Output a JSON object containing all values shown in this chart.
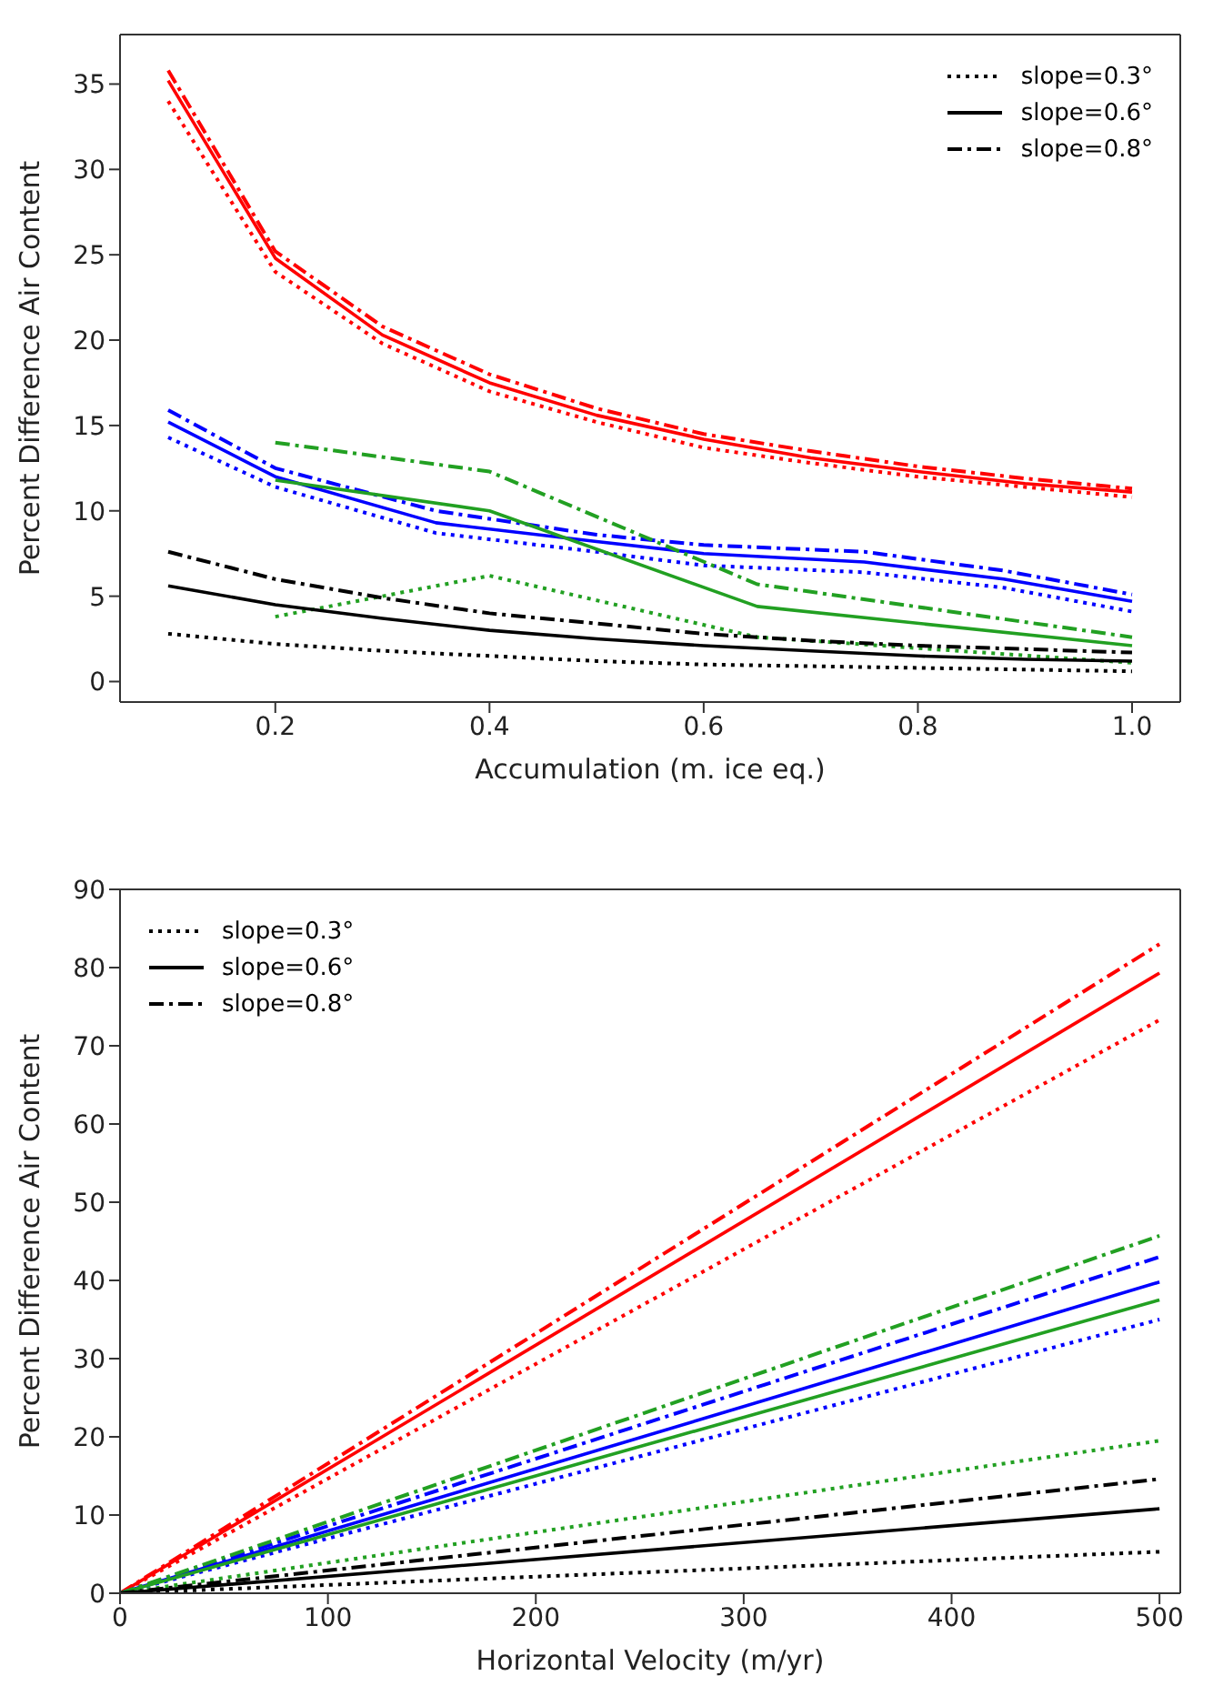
{
  "chart_data": [
    {
      "type": "line",
      "xlabel": "Accumulation (m. ice eq.)",
      "ylabel": "Percent Difference Air Content",
      "xlim": [
        0.055,
        1.045
      ],
      "ylim": [
        -1.2,
        37.9
      ],
      "xticks": [
        {
          "value": 0.2,
          "label": "0.2"
        },
        {
          "value": 0.4,
          "label": "0.4"
        },
        {
          "value": 0.6,
          "label": "0.6"
        },
        {
          "value": 0.8,
          "label": "0.8"
        },
        {
          "value": 1.0,
          "label": "1.0"
        }
      ],
      "yticks": [
        0,
        5,
        10,
        15,
        20,
        25,
        30,
        35
      ],
      "legend": "top right",
      "marker": "none",
      "series": [
        {
          "color": "#ff0000",
          "line_style": "dotted",
          "x": [
            0.1,
            0.2,
            0.3,
            0.4,
            0.5,
            0.6,
            0.7,
            0.8,
            0.9,
            1.0
          ],
          "values": [
            34,
            24,
            19.8,
            17,
            15.2,
            13.7,
            12.8,
            12.0,
            11.4,
            10.8
          ]
        },
        {
          "color": "#ff0000",
          "line_style": "solid",
          "x": [
            0.1,
            0.2,
            0.3,
            0.4,
            0.5,
            0.6,
            0.7,
            0.8,
            0.9,
            1.0
          ],
          "values": [
            35.2,
            24.8,
            20.3,
            17.5,
            15.6,
            14.2,
            13.1,
            12.3,
            11.6,
            11.1
          ]
        },
        {
          "color": "#ff0000",
          "line_style": "dashdot",
          "x": [
            0.1,
            0.2,
            0.3,
            0.4,
            0.5,
            0.6,
            0.7,
            0.8,
            0.9,
            1.0
          ],
          "values": [
            35.8,
            25.2,
            20.8,
            18.0,
            16.0,
            14.5,
            13.5,
            12.6,
            11.9,
            11.3
          ]
        },
        {
          "color": "#0000ff",
          "line_style": "dotted",
          "x": [
            0.1,
            0.2,
            0.35,
            0.5,
            0.6,
            0.75,
            0.88,
            1.0
          ],
          "values": [
            14.3,
            11.4,
            8.7,
            7.6,
            6.8,
            6.4,
            5.5,
            4.1
          ]
        },
        {
          "color": "#0000ff",
          "line_style": "solid",
          "x": [
            0.1,
            0.2,
            0.35,
            0.5,
            0.6,
            0.75,
            0.88,
            1.0
          ],
          "values": [
            15.2,
            12.0,
            9.3,
            8.2,
            7.5,
            7.0,
            6.0,
            4.7
          ]
        },
        {
          "color": "#0000ff",
          "line_style": "dashdot",
          "x": [
            0.1,
            0.2,
            0.35,
            0.5,
            0.6,
            0.75,
            0.88,
            1.0
          ],
          "values": [
            15.9,
            12.5,
            10.0,
            8.6,
            8.0,
            7.6,
            6.5,
            5.1
          ]
        },
        {
          "color": "#22a022",
          "line_style": "dotted",
          "x": [
            0.2,
            0.4,
            0.65,
            1.0
          ],
          "values": [
            3.8,
            6.2,
            2.6,
            1.1
          ]
        },
        {
          "color": "#22a022",
          "line_style": "solid",
          "x": [
            0.2,
            0.4,
            0.65,
            1.0
          ],
          "values": [
            11.8,
            10.0,
            4.4,
            2.1
          ]
        },
        {
          "color": "#22a022",
          "line_style": "dashdot",
          "x": [
            0.2,
            0.4,
            0.65,
            1.0
          ],
          "values": [
            14.0,
            12.3,
            5.7,
            2.6
          ]
        },
        {
          "name": "slope=0.3°",
          "color": "#000000",
          "line_style": "dotted",
          "x": [
            0.1,
            0.2,
            0.3,
            0.4,
            0.5,
            0.6,
            0.7,
            0.8,
            0.9,
            1.0
          ],
          "values": [
            2.8,
            2.2,
            1.8,
            1.5,
            1.2,
            1.0,
            0.9,
            0.8,
            0.7,
            0.6
          ]
        },
        {
          "name": "slope=0.6°",
          "color": "#000000",
          "line_style": "solid",
          "x": [
            0.1,
            0.2,
            0.3,
            0.4,
            0.5,
            0.6,
            0.7,
            0.8,
            0.9,
            1.0
          ],
          "values": [
            5.6,
            4.5,
            3.7,
            3.0,
            2.5,
            2.1,
            1.8,
            1.5,
            1.3,
            1.2
          ]
        },
        {
          "name": "slope=0.8°",
          "color": "#000000",
          "line_style": "dashdot",
          "x": [
            0.1,
            0.2,
            0.3,
            0.4,
            0.5,
            0.6,
            0.7,
            0.8,
            0.9,
            1.0
          ],
          "values": [
            7.6,
            6.0,
            4.9,
            4.0,
            3.4,
            2.8,
            2.4,
            2.1,
            1.9,
            1.7
          ]
        }
      ]
    },
    {
      "type": "line",
      "xlabel": "Horizontal Velocity (m/yr)",
      "ylabel": "Percent Difference Air Content",
      "xlim": [
        0,
        510
      ],
      "ylim": [
        0,
        90
      ],
      "xticks": [
        0,
        100,
        200,
        300,
        400,
        500
      ],
      "yticks": [
        0,
        10,
        20,
        30,
        40,
        50,
        60,
        70,
        80,
        90
      ],
      "legend": "top left",
      "marker": "none",
      "series": [
        {
          "color": "#ff0000",
          "line_style": "dotted",
          "x": [
            0,
            500
          ],
          "values": [
            0,
            73.3
          ]
        },
        {
          "color": "#ff0000",
          "line_style": "solid",
          "x": [
            0,
            500
          ],
          "values": [
            0,
            79.3
          ]
        },
        {
          "color": "#ff0000",
          "line_style": "dashdot",
          "x": [
            0,
            500
          ],
          "values": [
            0,
            83
          ]
        },
        {
          "color": "#0000ff",
          "line_style": "dotted",
          "x": [
            0,
            500
          ],
          "values": [
            0,
            35
          ]
        },
        {
          "color": "#0000ff",
          "line_style": "solid",
          "x": [
            0,
            500
          ],
          "values": [
            0,
            39.8
          ]
        },
        {
          "color": "#0000ff",
          "line_style": "dashdot",
          "x": [
            0,
            500
          ],
          "values": [
            0,
            43
          ]
        },
        {
          "color": "#22a022",
          "line_style": "dotted",
          "x": [
            0,
            500
          ],
          "values": [
            0,
            19.5
          ]
        },
        {
          "color": "#22a022",
          "line_style": "solid",
          "x": [
            0,
            500
          ],
          "values": [
            0,
            37.5
          ]
        },
        {
          "color": "#22a022",
          "line_style": "dashdot",
          "x": [
            0,
            500
          ],
          "values": [
            0,
            45.7
          ]
        },
        {
          "name": "slope=0.3°",
          "color": "#000000",
          "line_style": "dotted",
          "x": [
            0,
            500
          ],
          "values": [
            0,
            5.3
          ]
        },
        {
          "name": "slope=0.6°",
          "color": "#000000",
          "line_style": "solid",
          "x": [
            0,
            500
          ],
          "values": [
            0,
            10.8
          ]
        },
        {
          "name": "slope=0.8°",
          "color": "#000000",
          "line_style": "dashdot",
          "x": [
            0,
            500
          ],
          "values": [
            0,
            14.6
          ]
        }
      ]
    }
  ]
}
